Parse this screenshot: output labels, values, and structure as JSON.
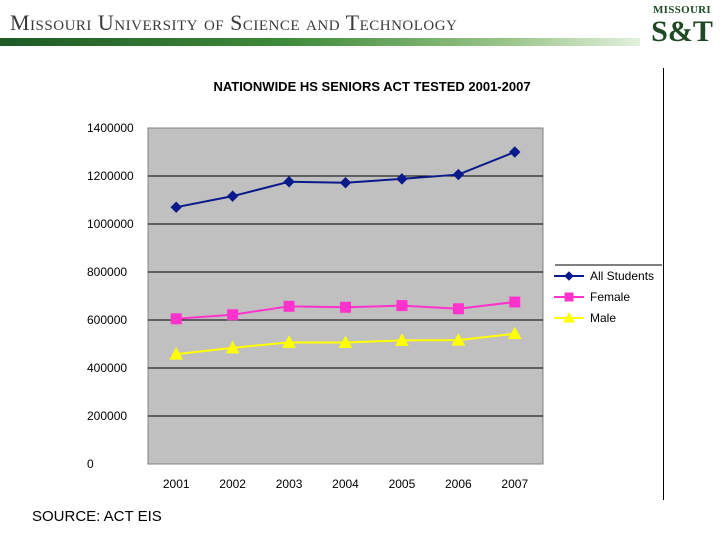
{
  "header": {
    "title": "Missouri University of Science and Technology",
    "logo_word": "MISSOURI",
    "logo_mark": "S&T"
  },
  "source": "SOURCE: ACT EIS",
  "colors": {
    "plot_background": "#c0c0c0",
    "all_students": "#0a1a8a",
    "female": "#ff33cc",
    "male": "#ffff00"
  },
  "chart_data": {
    "type": "line",
    "title": "NATIONWIDE HS SENIORS ACT TESTED 2001-2007",
    "x": [
      "2001",
      "2002",
      "2003",
      "2004",
      "2005",
      "2006",
      "2007"
    ],
    "yticks": [
      "0",
      "200000",
      "400000",
      "600000",
      "800000",
      "1000000",
      "1200000",
      "1400000"
    ],
    "ylim": [
      0,
      1400000
    ],
    "grid": "horizontal major gridlines",
    "legend_position": "right",
    "series": [
      {
        "name": "All Students",
        "marker": "diamond",
        "color": "#0a1a8a",
        "values": [
          1070000,
          1116000,
          1176000,
          1172000,
          1188000,
          1206000,
          1300000
        ]
      },
      {
        "name": "Female",
        "marker": "square",
        "color": "#ff33cc",
        "values": [
          605000,
          622000,
          657000,
          653000,
          660000,
          647000,
          675000
        ]
      },
      {
        "name": "Male",
        "marker": "triangle",
        "color": "#ffff00",
        "values": [
          458000,
          484000,
          507000,
          506000,
          515000,
          516000,
          543000
        ]
      }
    ]
  }
}
